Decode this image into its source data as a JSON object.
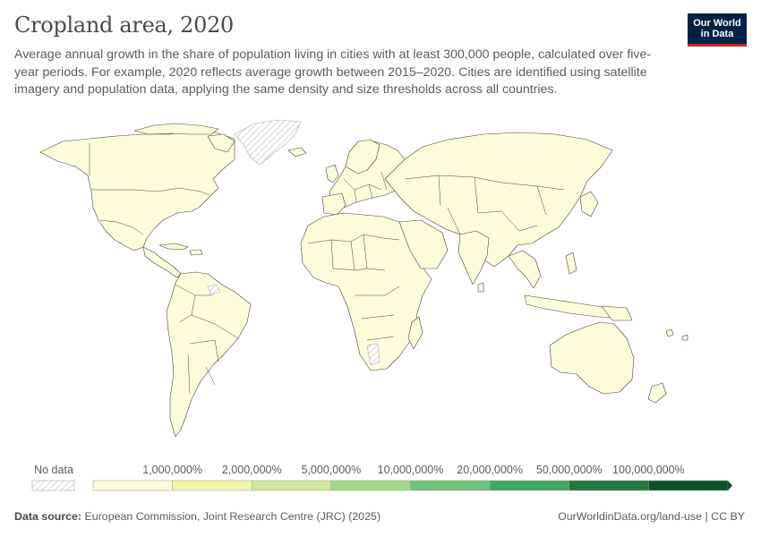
{
  "header": {
    "title": "Cropland area, 2020",
    "subtitle": "Average annual growth in the share of population living in cities with at least 300,000 people, calculated over five-year periods. For example, 2020 reflects average growth between 2015–2020. Cities are identified using satellite imagery and population data, applying the same density and size thresholds across all countries."
  },
  "logo": {
    "line1": "Our World",
    "line2": "in Data"
  },
  "legend": {
    "no_data_label": "No data",
    "thresholds": [
      "1,000,000%",
      "2,000,000%",
      "5,000,000%",
      "10,000,000%",
      "20,000,000%",
      "50,000,000%",
      "100,000,000%"
    ],
    "colors": [
      "#fcfbda",
      "#f2f5a8",
      "#cfe89a",
      "#a3d88a",
      "#6fc27c",
      "#41a85f",
      "#217a3d",
      "#0b5228"
    ]
  },
  "footer": {
    "source_label": "Data source:",
    "source_text": "European Commission, Joint Research Centre (JRC) (2025)",
    "url": "OurWorldinData.org/land-use | CC BY"
  }
}
